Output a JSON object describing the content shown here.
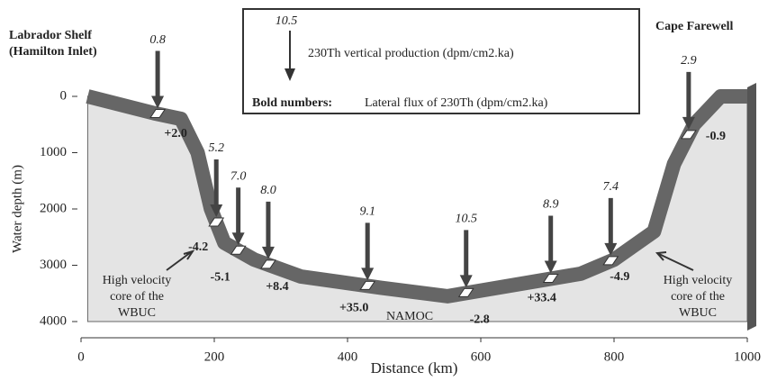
{
  "chart_data": {
    "type": "section",
    "xlabel": "Distance (km)",
    "ylabel": "Water depth (m)",
    "xlim": [
      0,
      1000
    ],
    "ylim": [
      0,
      4000
    ],
    "xticks": [
      0,
      200,
      400,
      600,
      800,
      1000
    ],
    "yticks": [
      0,
      1000,
      2000,
      3000,
      4000
    ],
    "y_inverted": true,
    "left_station": [
      "Labrador Shelf",
      "(Hamilton Inlet)"
    ],
    "right_station": "Cape Farewell",
    "legend": {
      "sample": "10.5",
      "arrow_text": "230Th vertical production (dpm/cm2.ka)",
      "bold_label": "Bold numbers:",
      "bold_text": "Lateral flux of 230Th (dpm/cm2.ka)"
    },
    "annotations": {
      "left_core": [
        "High velocity",
        "core of the",
        "WBUC"
      ],
      "right_core": [
        "High velocity",
        "core of the",
        "WBUC"
      ],
      "namoc": "NAMOC"
    },
    "bathymetry": {
      "x": [
        10,
        60,
        110,
        150,
        175,
        195,
        215,
        260,
        330,
        450,
        550,
        600,
        750,
        800,
        860,
        890,
        920,
        960,
        1000
      ],
      "depth": [
        0,
        150,
        300,
        400,
        1000,
        2000,
        2600,
        2900,
        3200,
        3400,
        3550,
        3450,
        3150,
        2900,
        2400,
        1200,
        500,
        0,
        0
      ]
    },
    "stations": {
      "x": [
        115,
        203,
        236,
        281,
        430,
        578,
        705,
        795,
        912
      ],
      "production": [
        0.8,
        5.2,
        7.0,
        8.0,
        9.1,
        10.5,
        8.9,
        7.4,
        2.9
      ],
      "production_labels": [
        "0.8",
        "5.2",
        "7.0",
        "8.0",
        "9.1",
        "10.5",
        "8.9",
        "7.4",
        "2.9"
      ],
      "flux": [
        2.0,
        -4.2,
        -5.1,
        8.4,
        35.0,
        -2.8,
        33.4,
        -4.9,
        -0.9
      ],
      "flux_labels": [
        "+2.0",
        "-4.2",
        "-5.1",
        "+8.4",
        "+35.0",
        "-2.8",
        "+33.4",
        "-4.9",
        "-0.9"
      ]
    }
  }
}
